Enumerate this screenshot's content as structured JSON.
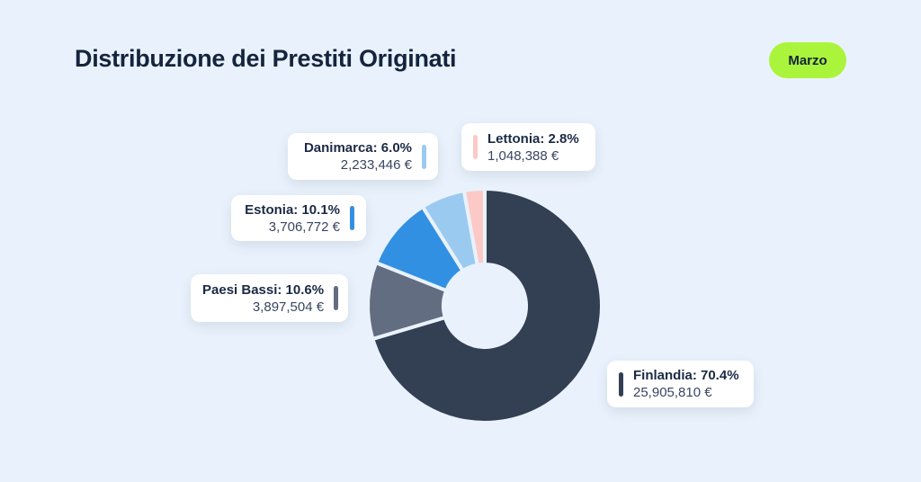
{
  "page": {
    "background": "#e9f2fc"
  },
  "header": {
    "title": "Distribuzione dei Prestiti Originati",
    "badge": {
      "label": "Marzo",
      "background": "#aaf43c",
      "text_color": "#13233c"
    }
  },
  "chart_data": {
    "type": "pie",
    "subtype": "donut",
    "title": "Distribuzione dei Prestiti Originati",
    "period_label": "Marzo",
    "start_angle_deg": 0,
    "direction": "clockwise",
    "inner_radius_ratio": 0.35,
    "legend_position": "callout-cards",
    "segments": [
      {
        "label": "Finlandia",
        "percent": 70.4,
        "amount_eur": 25905810,
        "amount_display": "25,905,810 €",
        "callout_title": "Finlandia: 70.4%",
        "color": "#333f53"
      },
      {
        "label": "Paesi Bassi",
        "percent": 10.6,
        "amount_eur": 3897504,
        "amount_display": "3,897,504 €",
        "callout_title": "Paesi Bassi: 10.6%",
        "color": "#636d81"
      },
      {
        "label": "Estonia",
        "percent": 10.1,
        "amount_eur": 3706772,
        "amount_display": "3,706,772 €",
        "callout_title": "Estonia: 10.1%",
        "color": "#3290e2"
      },
      {
        "label": "Danimarca",
        "percent": 6.0,
        "amount_eur": 2233446,
        "amount_display": "2,233,446 €",
        "callout_title": "Danimarca: 6.0%",
        "color": "#9bcaf1"
      },
      {
        "label": "Lettonia",
        "percent": 2.8,
        "amount_eur": 1048388,
        "amount_display": "1,048,388 €",
        "callout_title": "Lettonia: 2.8%",
        "color": "#fcc9c6"
      }
    ]
  }
}
